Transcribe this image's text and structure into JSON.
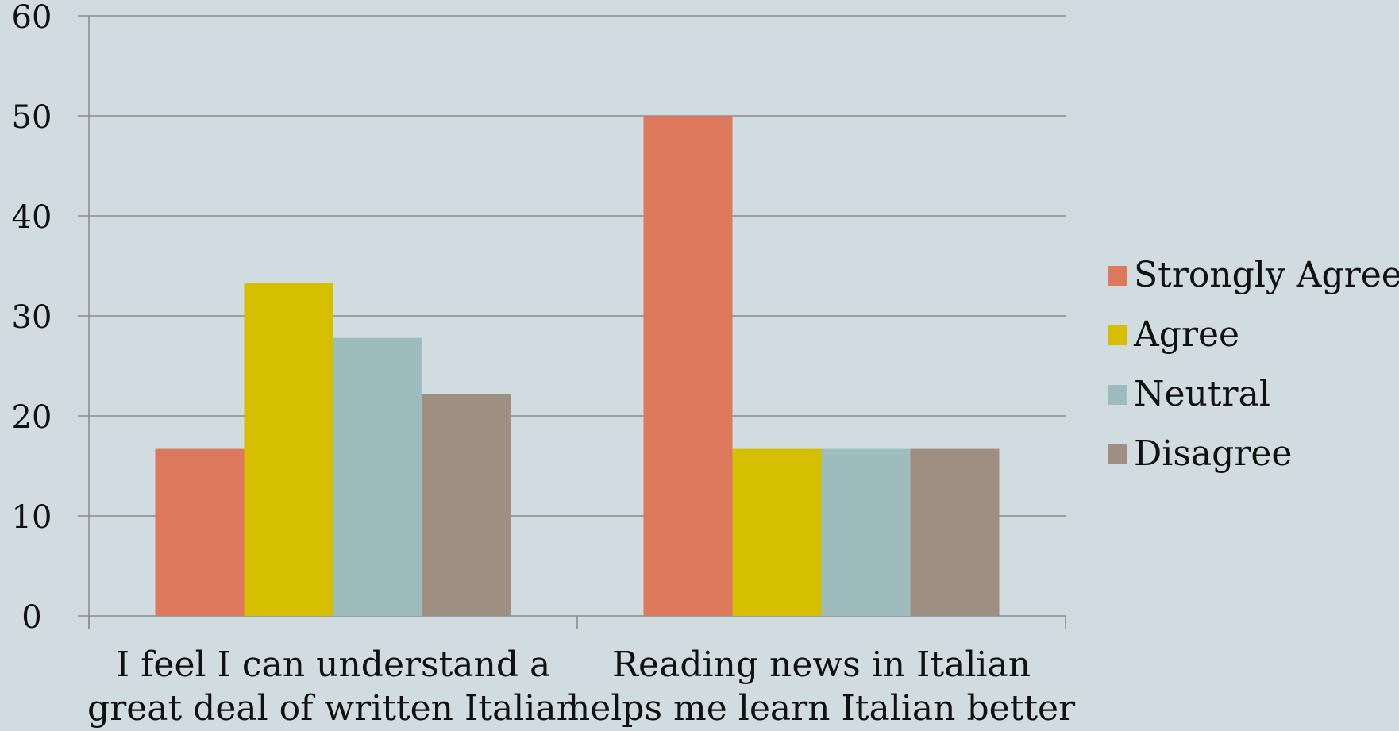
{
  "chart_data": {
    "type": "bar",
    "categories": [
      [
        "I feel I can understand a",
        "great deal of written Italian"
      ],
      [
        "Reading news in Italian",
        "helps me learn Italian better"
      ]
    ],
    "series": [
      {
        "name": "Strongly Agree",
        "color": "#dc785c",
        "values": [
          16.7,
          50
        ]
      },
      {
        "name": "Agree",
        "color": "#d6bf00",
        "values": [
          33.3,
          16.7
        ]
      },
      {
        "name": "Neutral",
        "color": "#9ebbbe",
        "values": [
          27.8,
          16.7
        ]
      },
      {
        "name": "Disagree",
        "color": "#9f8f83",
        "values": [
          22.2,
          16.7
        ]
      }
    ],
    "ylim": [
      0,
      60
    ],
    "yticks": [
      0,
      10,
      20,
      30,
      40,
      50,
      60
    ],
    "grid": true,
    "legend_position": "right",
    "title": "",
    "xlabel": "",
    "ylabel": ""
  }
}
